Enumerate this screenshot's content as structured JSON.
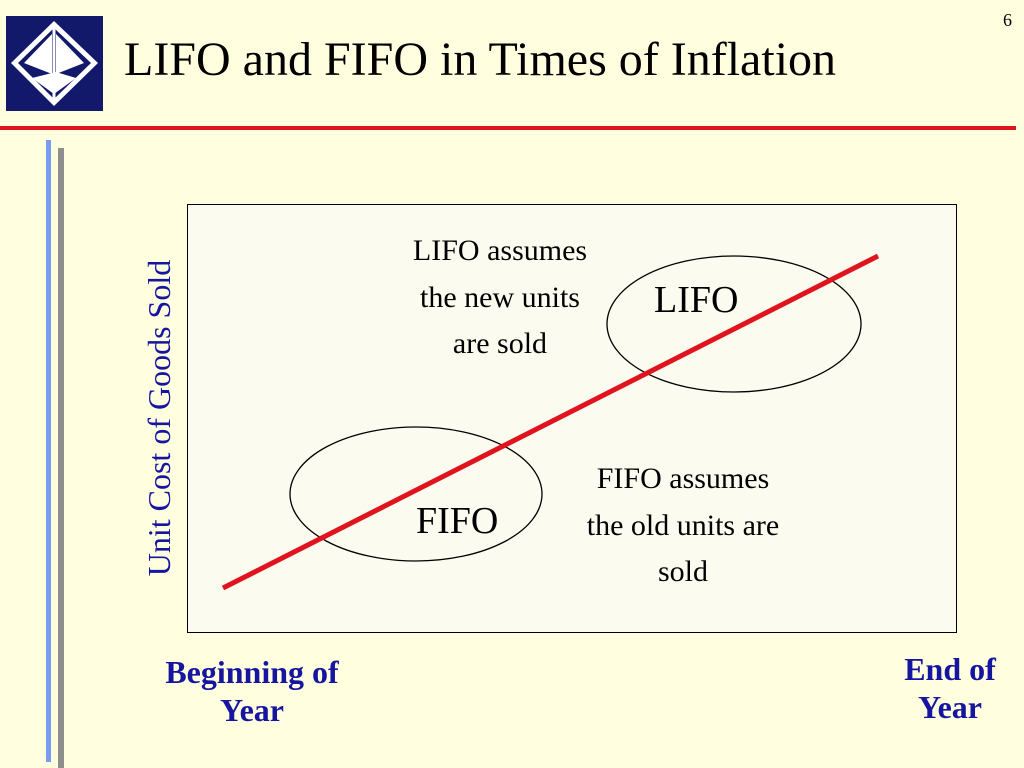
{
  "slide": {
    "number": "6",
    "title": "LIFO and FIFO in Times of Inflation"
  },
  "diagram": {
    "y_axis_label": "Unit Cost of Goods Sold",
    "x_start_label": [
      "Beginning of",
      "Year"
    ],
    "x_end_label": [
      "End of",
      "Year"
    ],
    "lifo": {
      "label": "LIFO",
      "note": [
        "LIFO assumes",
        "the new units",
        "are sold"
      ]
    },
    "fifo": {
      "label": "FIFO",
      "note": [
        "FIFO assumes",
        "the old units are",
        "sold"
      ]
    }
  },
  "colors": {
    "background": "#FFFFE0",
    "title_rule": "#E0141E",
    "cost_line": "#E0141E",
    "axis_text": "#1515A0",
    "logo": "#12196B"
  }
}
